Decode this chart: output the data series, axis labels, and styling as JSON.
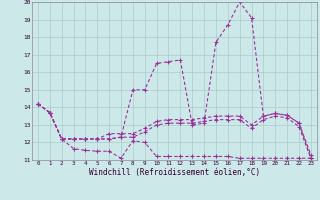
{
  "background_color": "#cce8e8",
  "grid_color": "#aacccc",
  "line_color": "#993399",
  "xlim_min": -0.5,
  "xlim_max": 23.5,
  "ylim_min": 11,
  "ylim_max": 20,
  "yticks": [
    11,
    12,
    13,
    14,
    15,
    16,
    17,
    18,
    19,
    20
  ],
  "xtick_labels": [
    "0",
    "1",
    "2",
    "3",
    "4",
    "5",
    "6",
    "7",
    "8",
    "9",
    "10",
    "11",
    "12",
    "13",
    "14",
    "15",
    "16",
    "17",
    "18",
    "19",
    "20",
    "21",
    "22",
    "23"
  ],
  "xlabel": "Windchill (Refroidissement éolien,°C)",
  "series": [
    [
      14.2,
      13.7,
      12.2,
      11.65,
      11.55,
      11.5,
      11.5,
      11.1,
      12.1,
      12.0,
      11.2,
      11.2,
      11.2,
      11.2,
      11.2,
      11.2,
      11.2,
      11.1,
      11.1,
      11.1,
      11.1,
      11.1,
      11.1,
      11.1
    ],
    [
      14.2,
      13.7,
      12.2,
      12.2,
      12.2,
      12.2,
      12.2,
      12.3,
      12.3,
      12.6,
      13.0,
      13.1,
      13.1,
      13.1,
      13.2,
      13.3,
      13.3,
      13.3,
      12.8,
      13.3,
      13.5,
      13.4,
      12.9,
      11.1
    ],
    [
      14.2,
      13.7,
      12.2,
      12.2,
      12.2,
      12.2,
      12.5,
      12.5,
      12.5,
      12.8,
      13.2,
      13.3,
      13.3,
      13.3,
      13.4,
      13.5,
      13.5,
      13.5,
      13.0,
      13.5,
      13.65,
      13.55,
      13.1,
      11.3
    ],
    [
      14.2,
      13.7,
      12.2,
      12.2,
      12.2,
      12.2,
      12.2,
      12.3,
      15.0,
      15.0,
      16.5,
      16.6,
      16.7,
      13.0,
      13.1,
      17.7,
      18.7,
      20.0,
      19.1,
      13.5,
      13.65,
      13.55,
      13.1,
      11.1
    ]
  ]
}
